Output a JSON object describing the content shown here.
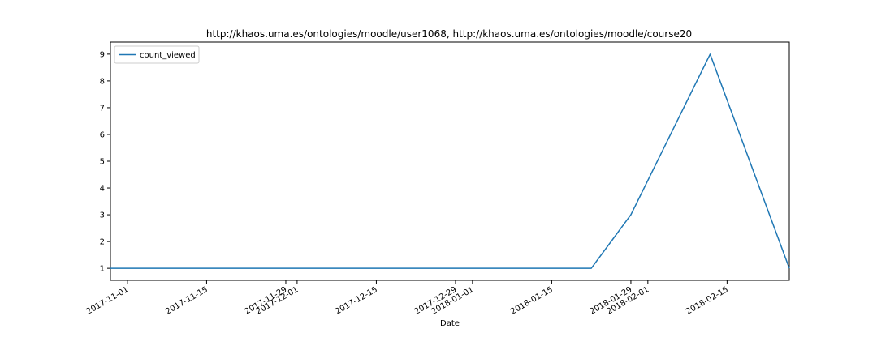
{
  "chart_data": {
    "type": "line",
    "title": "http://khaos.uma.es/ontologies/moodle/user1068, http://khaos.uma.es/ontologies/moodle/course20",
    "xlabel": "Date",
    "ylabel": "",
    "x_type": "date",
    "xlim": [
      "2017-10-29",
      "2018-02-26"
    ],
    "ylim": [
      0.55,
      9.45
    ],
    "x_ticks": [
      "2017-11-01",
      "2017-11-15",
      "2017-11-29",
      "2017-12-01",
      "2017-12-15",
      "2017-12-29",
      "2018-01-01",
      "2018-01-15",
      "2018-01-29",
      "2018-02-01",
      "2018-02-15"
    ],
    "y_ticks": [
      1,
      2,
      3,
      4,
      5,
      6,
      7,
      8,
      9
    ],
    "legend_position": "top-left",
    "grid": false,
    "series": [
      {
        "name": "count_viewed",
        "color": "#1f77b4",
        "points": [
          {
            "x": "2017-10-29",
            "y": 1
          },
          {
            "x": "2018-01-22",
            "y": 1
          },
          {
            "x": "2018-01-29",
            "y": 3
          },
          {
            "x": "2018-02-12",
            "y": 9
          },
          {
            "x": "2018-02-26",
            "y": 1
          }
        ]
      }
    ]
  }
}
